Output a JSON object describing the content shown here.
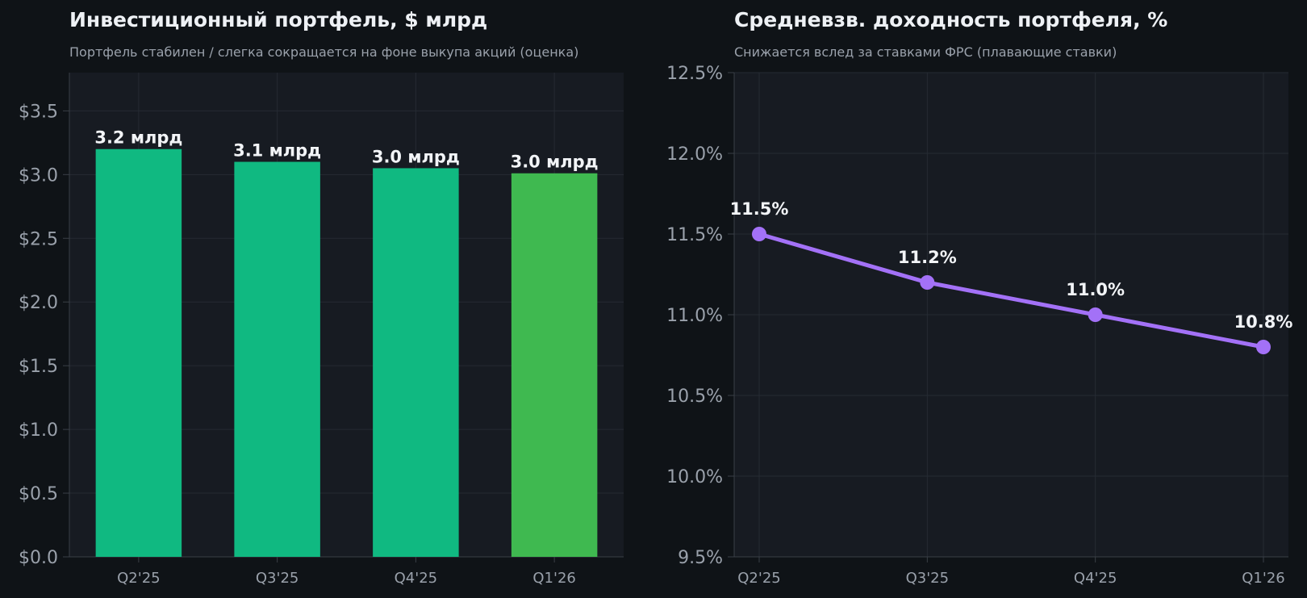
{
  "colors": {
    "page_bg": "#0f1317",
    "plot_bg": "#171b22",
    "grid": "#262b33",
    "tick_text": "#9aa1ab",
    "label_text": "#f2f4f7",
    "bar_primary": "#10b981",
    "bar_latest": "#3fb950",
    "line": "#a371f7"
  },
  "left_panel": {
    "title": "Инвестиционный портфель, $ млрд",
    "subtitle": "Портфель стабилен / слегка сокращается на фоне выкупа акций (оценка)"
  },
  "right_panel": {
    "title": "Средневзв. доходность портфеля, %",
    "subtitle": "Снижается вслед за ставками ФРС (плавающие ставки)"
  },
  "chart_data": [
    {
      "type": "bar",
      "categories": [
        "Q2'25",
        "Q3'25",
        "Q4'25",
        "Q1'26"
      ],
      "values": [
        3.2,
        3.1,
        3.05,
        3.01
      ],
      "data_labels": [
        "3.2 млрд",
        "3.1 млрд",
        "3.0 млрд",
        "3.0 млрд"
      ],
      "bar_colors": [
        "#10b981",
        "#10b981",
        "#10b981",
        "#3fb950"
      ],
      "ylim": [
        0,
        3.8
      ],
      "yticks": [
        0,
        0.5,
        1.0,
        1.5,
        2.0,
        2.5,
        3.0,
        3.5
      ],
      "ytick_labels": [
        "$0.0",
        "$0.5",
        "$1.0",
        "$1.5",
        "$2.0",
        "$2.5",
        "$3.0",
        "$3.5"
      ],
      "grid": true
    },
    {
      "type": "line",
      "categories": [
        "Q2'25",
        "Q3'25",
        "Q4'25",
        "Q1'26"
      ],
      "values": [
        11.5,
        11.2,
        11.0,
        10.8
      ],
      "data_labels": [
        "11.5%",
        "11.2%",
        "11.0%",
        "10.8%"
      ],
      "ylim": [
        9.5,
        12.5
      ],
      "yticks": [
        9.5,
        10.0,
        10.5,
        11.0,
        11.5,
        12.0,
        12.5
      ],
      "ytick_labels": [
        "9.5%",
        "10.0%",
        "10.5%",
        "11.0%",
        "11.5%",
        "12.0%",
        "12.5%"
      ],
      "grid": true
    }
  ]
}
